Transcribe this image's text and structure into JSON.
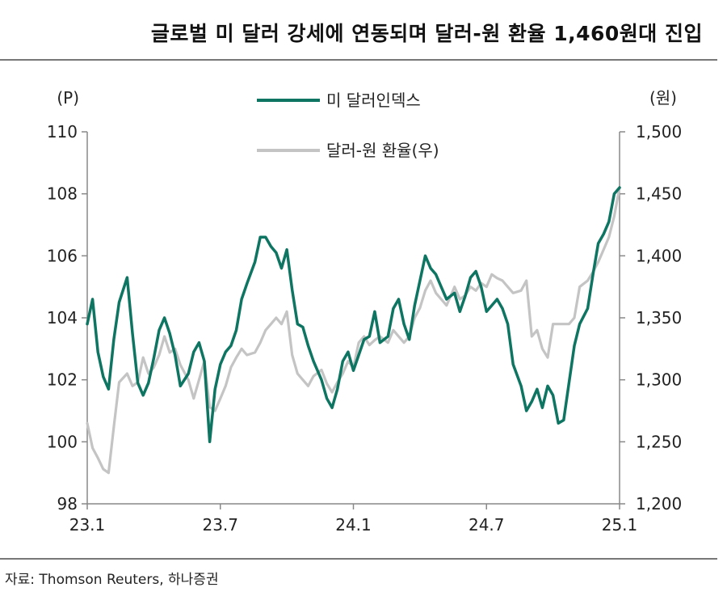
{
  "title": "글로벌 미 달러 강세에 연동되며 달러-원 환율 1,460원대 진입",
  "source": "자료: Thomson Reuters, 하나증권",
  "colors": {
    "usd_index": "#0e7563",
    "usdkrw": "#c4c4c4",
    "axis": "#888888"
  },
  "chart_data": {
    "type": "line",
    "left_axis": {
      "unit_label": "(P)",
      "range": [
        98,
        110
      ],
      "ticks": [
        "110",
        "108",
        "106",
        "104",
        "102",
        "100",
        "98"
      ]
    },
    "right_axis": {
      "unit_label": "(원)",
      "range": [
        1200,
        1500
      ],
      "ticks": [
        "1,500",
        "1,450",
        "1,400",
        "1,350",
        "1,300",
        "1,250",
        "1,200"
      ]
    },
    "x_axis": {
      "range": [
        2023.0,
        2025.0
      ],
      "ticks": [
        {
          "label": "23.1",
          "x": 2023.0
        },
        {
          "label": "23.7",
          "x": 2023.5
        },
        {
          "label": "24.1",
          "x": 2024.0
        },
        {
          "label": "24.7",
          "x": 2024.5
        },
        {
          "label": "25.1",
          "x": 2025.0
        }
      ]
    },
    "legend_position": "top-center",
    "series": [
      {
        "name": "미 달러인덱스",
        "axis": "left",
        "x": [
          2023.0,
          2023.02,
          2023.04,
          2023.06,
          2023.08,
          2023.1,
          2023.12,
          2023.15,
          2023.17,
          2023.19,
          2023.21,
          2023.23,
          2023.25,
          2023.27,
          2023.29,
          2023.31,
          2023.33,
          2023.35,
          2023.38,
          2023.4,
          2023.42,
          2023.44,
          2023.46,
          2023.48,
          2023.5,
          2023.52,
          2023.54,
          2023.56,
          2023.58,
          2023.6,
          2023.63,
          2023.65,
          2023.67,
          2023.69,
          2023.71,
          2023.73,
          2023.75,
          2023.77,
          2023.79,
          2023.81,
          2023.83,
          2023.85,
          2023.88,
          2023.9,
          2023.92,
          2023.94,
          2023.96,
          2023.98,
          2024.0,
          2024.02,
          2024.04,
          2024.06,
          2024.08,
          2024.1,
          2024.13,
          2024.15,
          2024.17,
          2024.19,
          2024.21,
          2024.23,
          2024.25,
          2024.27,
          2024.29,
          2024.31,
          2024.33,
          2024.35,
          2024.38,
          2024.4,
          2024.42,
          2024.44,
          2024.46,
          2024.48,
          2024.5,
          2024.52,
          2024.54,
          2024.56,
          2024.58,
          2024.6,
          2024.63,
          2024.65,
          2024.67,
          2024.69,
          2024.71,
          2024.73,
          2024.75,
          2024.77,
          2024.79,
          2024.81,
          2024.83,
          2024.85,
          2024.88,
          2024.9,
          2024.92,
          2024.94,
          2024.96,
          2024.98,
          2025.0
        ],
        "values": [
          103.8,
          104.6,
          102.9,
          102.1,
          101.7,
          103.3,
          104.5,
          105.3,
          103.5,
          101.9,
          101.5,
          101.9,
          102.7,
          103.6,
          104.0,
          103.5,
          102.8,
          101.8,
          102.2,
          102.9,
          103.2,
          102.6,
          100.0,
          101.7,
          102.5,
          102.9,
          103.1,
          103.6,
          104.6,
          105.1,
          105.8,
          106.6,
          106.6,
          106.3,
          106.1,
          105.6,
          106.2,
          104.9,
          103.8,
          103.7,
          103.1,
          102.6,
          102.0,
          101.4,
          101.1,
          101.7,
          102.6,
          102.9,
          102.3,
          102.8,
          103.3,
          103.4,
          104.2,
          103.2,
          103.4,
          104.3,
          104.6,
          103.8,
          103.3,
          104.4,
          105.2,
          106.0,
          105.6,
          105.4,
          105.0,
          104.6,
          104.8,
          104.2,
          104.7,
          105.3,
          105.5,
          105.0,
          104.2,
          104.4,
          104.6,
          104.3,
          103.8,
          102.5,
          101.8,
          101.0,
          101.3,
          101.7,
          101.1,
          101.8,
          101.5,
          100.6,
          100.7,
          101.9,
          103.1,
          103.8,
          104.3,
          105.4,
          106.4,
          106.7,
          107.1,
          108.0,
          108.2
        ]
      },
      {
        "name": "달러-원 환율(우)",
        "axis": "right",
        "x": [
          2023.0,
          2023.02,
          2023.04,
          2023.06,
          2023.08,
          2023.1,
          2023.12,
          2023.15,
          2023.17,
          2023.19,
          2023.21,
          2023.23,
          2023.25,
          2023.27,
          2023.29,
          2023.31,
          2023.33,
          2023.35,
          2023.38,
          2023.4,
          2023.42,
          2023.44,
          2023.46,
          2023.48,
          2023.5,
          2023.52,
          2023.54,
          2023.56,
          2023.58,
          2023.6,
          2023.63,
          2023.65,
          2023.67,
          2023.69,
          2023.71,
          2023.73,
          2023.75,
          2023.77,
          2023.79,
          2023.81,
          2023.83,
          2023.85,
          2023.88,
          2023.9,
          2023.92,
          2023.94,
          2023.96,
          2023.98,
          2024.0,
          2024.02,
          2024.04,
          2024.06,
          2024.08,
          2024.1,
          2024.13,
          2024.15,
          2024.17,
          2024.19,
          2024.21,
          2024.23,
          2024.25,
          2024.27,
          2024.29,
          2024.31,
          2024.33,
          2024.35,
          2024.38,
          2024.4,
          2024.42,
          2024.44,
          2024.46,
          2024.48,
          2024.5,
          2024.52,
          2024.54,
          2024.56,
          2024.58,
          2024.6,
          2024.63,
          2024.65,
          2024.67,
          2024.69,
          2024.71,
          2024.73,
          2024.75,
          2024.77,
          2024.79,
          2024.81,
          2024.83,
          2024.85,
          2024.88,
          2024.9,
          2024.92,
          2024.94,
          2024.96,
          2024.98,
          2025.0
        ],
        "values": [
          1265,
          1245,
          1237,
          1228,
          1225,
          1262,
          1298,
          1305,
          1295,
          1298,
          1318,
          1305,
          1310,
          1320,
          1335,
          1322,
          1325,
          1312,
          1300,
          1285,
          1300,
          1315,
          1278,
          1275,
          1285,
          1295,
          1310,
          1318,
          1325,
          1320,
          1322,
          1330,
          1340,
          1345,
          1350,
          1345,
          1355,
          1320,
          1305,
          1300,
          1295,
          1303,
          1308,
          1297,
          1290,
          1298,
          1305,
          1315,
          1310,
          1330,
          1335,
          1328,
          1332,
          1335,
          1330,
          1340,
          1335,
          1330,
          1335,
          1350,
          1358,
          1372,
          1380,
          1370,
          1365,
          1360,
          1375,
          1365,
          1368,
          1375,
          1372,
          1378,
          1375,
          1385,
          1382,
          1380,
          1375,
          1370,
          1372,
          1380,
          1335,
          1340,
          1325,
          1318,
          1345,
          1345,
          1345,
          1345,
          1350,
          1375,
          1380,
          1387,
          1395,
          1405,
          1415,
          1432,
          1455
        ]
      }
    ]
  }
}
